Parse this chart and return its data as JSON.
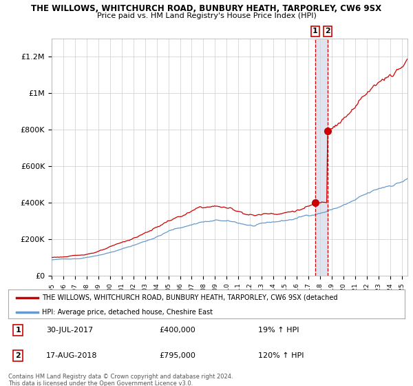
{
  "title1": "THE WILLOWS, WHITCHURCH ROAD, BUNBURY HEATH, TARPORLEY, CW6 9SX",
  "title2": "Price paid vs. HM Land Registry's House Price Index (HPI)",
  "legend_line1": "THE WILLOWS, WHITCHURCH ROAD, BUNBURY HEATH, TARPORLEY, CW6 9SX (detached",
  "legend_line2": "HPI: Average price, detached house, Cheshire East",
  "footer": "Contains HM Land Registry data © Crown copyright and database right 2024.\nThis data is licensed under the Open Government Licence v3.0.",
  "sale1_date": 2017.57,
  "sale1_price": 400000,
  "sale1_label": "1",
  "sale1_pct": "19% ↑ HPI",
  "sale1_datestr": "30-JUL-2017",
  "sale2_date": 2018.63,
  "sale2_price": 795000,
  "sale2_label": "2",
  "sale2_pct": "120% ↑ HPI",
  "sale2_datestr": "17-AUG-2018",
  "hpi_color": "#6699cc",
  "sale_color": "#cc0000",
  "marker_color": "#cc0000",
  "vline_color": "#cc0000",
  "highlight_color": "#d0d8e8",
  "bg_color": "#ffffff",
  "grid_color": "#cccccc",
  "ylim": [
    0,
    1300000
  ],
  "xlim_start": 1995,
  "xlim_end": 2025.5,
  "ylabel_ticks": [
    0,
    200000,
    400000,
    600000,
    800000,
    1000000,
    1200000
  ],
  "ylabel_labels": [
    "£0",
    "£200K",
    "£400K",
    "£600K",
    "£800K",
    "£1M",
    "£1.2M"
  ]
}
